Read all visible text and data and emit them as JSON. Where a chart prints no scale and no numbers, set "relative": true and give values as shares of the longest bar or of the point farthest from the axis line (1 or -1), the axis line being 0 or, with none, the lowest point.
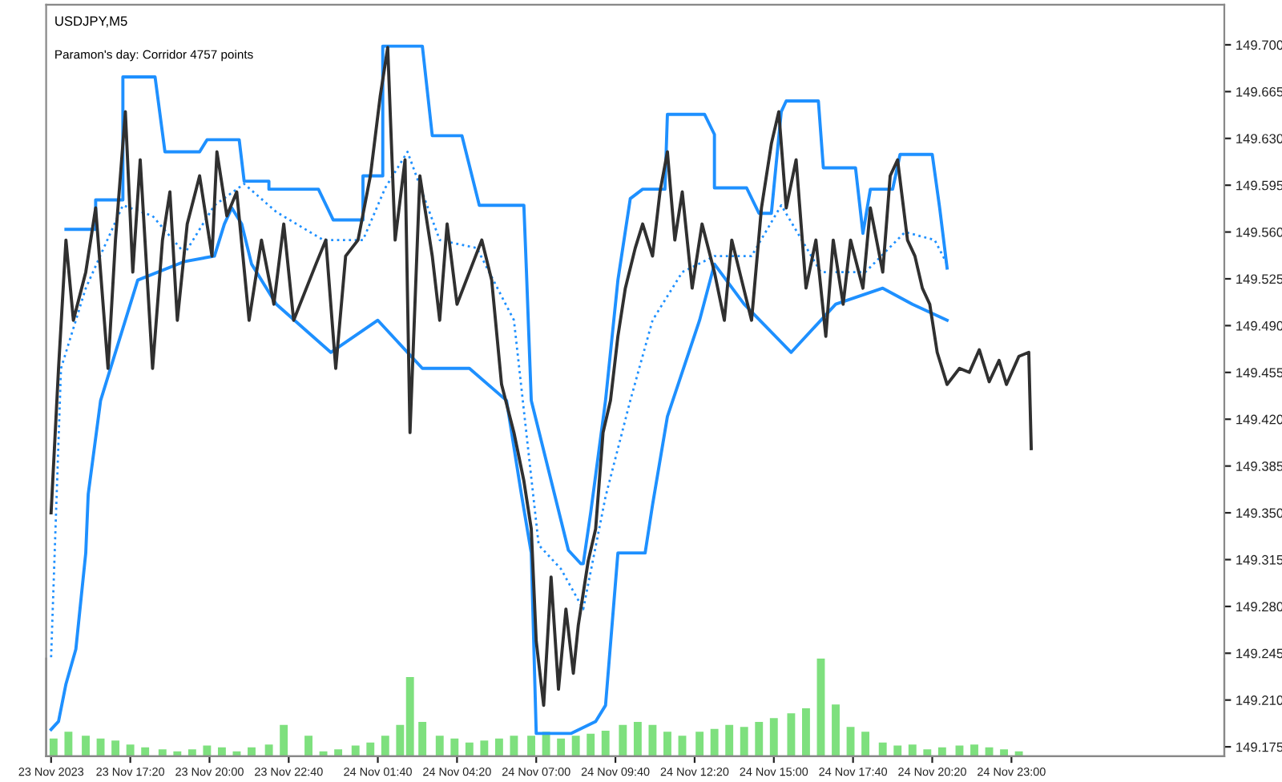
{
  "chart_data": [
    {
      "type": "line",
      "title": "USDJPY,M5",
      "subtitle": "Paramon's day: Corridor 4757 points",
      "grid": false,
      "marker": "none",
      "xlim": [
        "2023-11-23T14:30",
        "2023-11-25T06:10"
      ],
      "ylim": [
        149.168,
        149.73
      ],
      "xticks": [
        {
          "value": "2023-11-23T14:40",
          "label": "23 Nov 2023"
        },
        {
          "value": "2023-11-23T17:20",
          "label": "23 Nov 17:20"
        },
        {
          "value": "2023-11-23T20:00",
          "label": "23 Nov 20:00"
        },
        {
          "value": "2023-11-23T22:40",
          "label": "23 Nov 22:40"
        },
        {
          "value": "2023-11-24T01:40",
          "label": "24 Nov 01:40"
        },
        {
          "value": "2023-11-24T04:20",
          "label": "24 Nov 04:20"
        },
        {
          "value": "2023-11-24T07:00",
          "label": "24 Nov 07:00"
        },
        {
          "value": "2023-11-24T09:40",
          "label": "24 Nov 09:40"
        },
        {
          "value": "2023-11-24T12:20",
          "label": "24 Nov 12:20"
        },
        {
          "value": "2023-11-24T15:00",
          "label": "24 Nov 15:00"
        },
        {
          "value": "2023-11-24T17:40",
          "label": "24 Nov 17:40"
        },
        {
          "value": "2023-11-24T20:20",
          "label": "24 Nov 20:20"
        },
        {
          "value": "2023-11-24T23:00",
          "label": "24 Nov 23:00"
        }
      ],
      "yticks": [
        {
          "value": 149.175,
          "label": "149.175"
        },
        {
          "value": 149.21,
          "label": "149.210"
        },
        {
          "value": 149.245,
          "label": "149.245"
        },
        {
          "value": 149.28,
          "label": "149.280"
        },
        {
          "value": 149.315,
          "label": "149.315"
        },
        {
          "value": 149.35,
          "label": "149.350"
        },
        {
          "value": 149.385,
          "label": "149.385"
        },
        {
          "value": 149.42,
          "label": "149.420"
        },
        {
          "value": 149.455,
          "label": "149.455"
        },
        {
          "value": 149.49,
          "label": "149.490"
        },
        {
          "value": 149.525,
          "label": "149.525"
        },
        {
          "value": 149.56,
          "label": "149.560"
        },
        {
          "value": 149.595,
          "label": "149.595"
        },
        {
          "value": 149.63,
          "label": "149.630"
        },
        {
          "value": 149.665,
          "label": "149.665"
        },
        {
          "value": 149.7,
          "label": "149.700"
        }
      ],
      "series": [
        {
          "type": "line",
          "color": "#1e90ff",
          "line_style": "solid",
          "x": [
            "2023-11-23T15:10",
            "2023-11-23T16:10",
            "2023-11-23T16:10",
            "2023-11-23T17:05",
            "2023-11-23T17:05",
            "2023-11-23T18:10",
            "2023-11-23T18:30",
            "2023-11-23T19:40",
            "2023-11-23T19:55",
            "2023-11-23T21:00",
            "2023-11-23T21:10",
            "2023-11-23T22:00",
            "2023-11-23T22:00",
            "2023-11-23T23:40",
            "2023-11-24T00:10",
            "2023-11-24T01:10",
            "2023-11-24T01:10",
            "2023-11-24T01:50",
            "2023-11-24T01:50",
            "2023-11-24T03:10",
            "2023-11-24T03:30",
            "2023-11-24T04:30",
            "2023-11-24T05:05",
            "2023-11-24T06:35",
            "2023-11-24T06:40",
            "2023-11-24T06:50",
            "2023-11-24T08:05",
            "2023-11-24T08:30",
            "2023-11-24T08:35",
            "2023-11-24T08:50",
            "2023-11-24T09:20",
            "2023-11-24T09:45",
            "2023-11-24T10:10",
            "2023-11-24T10:35",
            "2023-11-24T11:20",
            "2023-11-24T11:25",
            "2023-11-24T12:40",
            "2023-11-24T13:00",
            "2023-11-24T13:00",
            "2023-11-24T14:05",
            "2023-11-24T14:30",
            "2023-11-24T14:55",
            "2023-11-24T15:15",
            "2023-11-24T15:25",
            "2023-11-24T16:30",
            "2023-11-24T16:40",
            "2023-11-24T17:45",
            "2023-11-24T18:00",
            "2023-11-24T18:15",
            "2023-11-24T19:00",
            "2023-11-24T19:15",
            "2023-11-24T20:20",
            "2023-11-24T20:35",
            "2023-11-24T20:50"
          ],
          "values": [
            149.562,
            149.562,
            149.584,
            149.584,
            149.676,
            149.676,
            149.62,
            149.62,
            149.629,
            149.629,
            149.598,
            149.598,
            149.592,
            149.592,
            149.569,
            149.569,
            149.602,
            149.602,
            149.699,
            149.699,
            149.632,
            149.632,
            149.58,
            149.58,
            149.533,
            149.434,
            149.322,
            149.312,
            149.312,
            149.35,
            149.434,
            149.524,
            149.585,
            149.592,
            149.592,
            149.648,
            149.648,
            149.633,
            149.593,
            149.593,
            149.574,
            149.574,
            149.65,
            149.658,
            149.658,
            149.608,
            149.608,
            149.559,
            149.592,
            149.592,
            149.618,
            149.618,
            149.578,
            149.533
          ]
        },
        {
          "type": "line",
          "color": "#1e90ff",
          "line_style": "solid",
          "x": [
            "2023-11-23T14:40",
            "2023-11-23T14:55",
            "2023-11-23T15:10",
            "2023-11-23T15:30",
            "2023-11-23T15:50",
            "2023-11-23T15:55",
            "2023-11-23T16:20",
            "2023-11-23T17:35",
            "2023-11-23T19:10",
            "2023-11-23T20:10",
            "2023-11-23T20:30",
            "2023-11-23T20:45",
            "2023-11-23T21:05",
            "2023-11-23T21:25",
            "2023-11-23T22:15",
            "2023-11-24T00:05",
            "2023-11-24T01:40",
            "2023-11-24T03:10",
            "2023-11-24T04:45",
            "2023-11-24T06:00",
            "2023-11-24T06:30",
            "2023-11-24T06:50",
            "2023-11-24T07:00",
            "2023-11-24T08:10",
            "2023-11-24T09:00",
            "2023-11-24T09:20",
            "2023-11-24T09:45",
            "2023-11-24T10:40",
            "2023-11-24T10:55",
            "2023-11-24T11:25",
            "2023-11-24T12:30",
            "2023-11-24T13:00",
            "2023-11-24T14:00",
            "2023-11-24T15:35",
            "2023-11-24T17:05",
            "2023-11-24T18:40",
            "2023-11-24T19:40",
            "2023-11-24T20:50"
          ],
          "values": [
            149.188,
            149.194,
            149.222,
            149.248,
            149.32,
            149.364,
            149.434,
            149.524,
            149.538,
            149.542,
            149.566,
            149.578,
            149.566,
            149.536,
            149.506,
            149.47,
            149.494,
            149.458,
            149.458,
            149.434,
            149.364,
            149.32,
            149.185,
            149.185,
            149.194,
            149.206,
            149.32,
            149.32,
            149.356,
            149.422,
            149.494,
            149.536,
            149.506,
            149.47,
            149.506,
            149.518,
            149.506,
            149.494
          ]
        },
        {
          "type": "line",
          "color": "#1e90ff",
          "line_style": "dotted",
          "x": [
            "2023-11-23T14:40",
            "2023-11-23T15:00",
            "2023-11-23T15:50",
            "2023-11-23T17:05",
            "2023-11-23T18:05",
            "2023-11-23T19:10",
            "2023-11-23T20:10",
            "2023-11-23T21:10",
            "2023-11-23T22:15",
            "2023-11-23T23:50",
            "2023-11-24T01:10",
            "2023-11-24T01:55",
            "2023-11-24T02:40",
            "2023-11-24T03:45",
            "2023-11-24T05:00",
            "2023-11-24T06:15",
            "2023-11-24T07:05",
            "2023-11-24T07:50",
            "2023-11-24T08:35",
            "2023-11-24T09:20",
            "2023-11-24T10:10",
            "2023-11-24T10:55",
            "2023-11-24T11:55",
            "2023-11-24T13:00",
            "2023-11-24T14:15",
            "2023-11-24T15:15",
            "2023-11-24T16:35",
            "2023-11-24T18:05",
            "2023-11-24T19:25",
            "2023-11-24T20:25",
            "2023-11-24T20:50"
          ],
          "values": [
            149.242,
            149.458,
            149.518,
            149.58,
            149.572,
            149.544,
            149.58,
            149.596,
            149.575,
            149.554,
            149.554,
            149.593,
            149.62,
            149.554,
            149.548,
            149.494,
            149.326,
            149.308,
            149.278,
            149.362,
            149.434,
            149.494,
            149.53,
            149.542,
            149.542,
            149.58,
            149.53,
            149.53,
            149.56,
            149.554,
            149.536
          ]
        },
        {
          "type": "line",
          "color": "#303030",
          "line_style": "solid",
          "x": [
            "2023-11-23T14:40",
            "2023-11-23T14:55",
            "2023-11-23T15:10",
            "2023-11-23T15:25",
            "2023-11-23T15:50",
            "2023-11-23T16:10",
            "2023-11-23T16:35",
            "2023-11-23T16:50",
            "2023-11-23T17:10",
            "2023-11-23T17:25",
            "2023-11-23T17:40",
            "2023-11-23T18:05",
            "2023-11-23T18:25",
            "2023-11-23T18:40",
            "2023-11-23T18:55",
            "2023-11-23T19:15",
            "2023-11-23T19:40",
            "2023-11-23T20:05",
            "2023-11-23T20:15",
            "2023-11-23T20:35",
            "2023-11-23T20:55",
            "2023-11-23T21:20",
            "2023-11-23T21:45",
            "2023-11-23T22:10",
            "2023-11-23T22:30",
            "2023-11-23T22:50",
            "2023-11-23T23:35",
            "2023-11-23T23:55",
            "2023-11-24T00:15",
            "2023-11-24T00:35",
            "2023-11-24T01:00",
            "2023-11-24T01:25",
            "2023-11-24T01:45",
            "2023-11-24T02:00",
            "2023-11-24T02:15",
            "2023-11-24T02:35",
            "2023-11-24T02:45",
            "2023-11-24T03:05",
            "2023-11-24T03:30",
            "2023-11-24T03:45",
            "2023-11-24T04:00",
            "2023-11-24T04:20",
            "2023-11-24T04:45",
            "2023-11-24T05:10",
            "2023-11-24T05:30",
            "2023-11-24T05:50",
            "2023-11-24T06:15",
            "2023-11-24T06:35",
            "2023-11-24T06:50",
            "2023-11-24T07:00",
            "2023-11-24T07:15",
            "2023-11-24T07:30",
            "2023-11-24T07:45",
            "2023-11-24T08:00",
            "2023-11-24T08:15",
            "2023-11-24T08:25",
            "2023-11-24T08:45",
            "2023-11-24T09:00",
            "2023-11-24T09:15",
            "2023-11-24T09:30",
            "2023-11-24T09:45",
            "2023-11-24T10:00",
            "2023-11-24T10:20",
            "2023-11-24T10:35",
            "2023-11-24T10:55",
            "2023-11-24T11:10",
            "2023-11-24T11:25",
            "2023-11-24T11:40",
            "2023-11-24T11:55",
            "2023-11-24T12:15",
            "2023-11-24T12:35",
            "2023-11-24T13:00",
            "2023-11-24T13:20",
            "2023-11-24T13:35",
            "2023-11-24T13:55",
            "2023-11-24T14:15",
            "2023-11-24T14:35",
            "2023-11-24T14:55",
            "2023-11-24T15:10",
            "2023-11-24T15:25",
            "2023-11-24T15:45",
            "2023-11-24T16:05",
            "2023-11-24T16:25",
            "2023-11-24T16:45",
            "2023-11-24T17:00",
            "2023-11-24T17:20",
            "2023-11-24T17:35",
            "2023-11-24T18:00",
            "2023-11-24T18:15",
            "2023-11-24T18:40",
            "2023-11-24T18:55",
            "2023-11-24T19:10",
            "2023-11-24T19:30",
            "2023-11-24T19:45",
            "2023-11-24T20:00",
            "2023-11-24T20:15",
            "2023-11-24T20:30",
            "2023-11-24T20:50",
            "2023-11-24T21:15",
            "2023-11-24T21:35",
            "2023-11-24T21:55",
            "2023-11-24T22:15",
            "2023-11-24T22:35",
            "2023-11-24T22:50",
            "2023-11-24T23:15",
            "2023-11-24T23:35",
            "2023-11-24T23:40"
          ],
          "values": [
            149.35,
            149.458,
            149.554,
            149.494,
            149.53,
            149.578,
            149.458,
            149.554,
            149.65,
            149.53,
            149.614,
            149.458,
            149.554,
            149.59,
            149.494,
            149.566,
            149.602,
            149.542,
            149.62,
            149.572,
            149.59,
            149.494,
            149.554,
            149.506,
            149.566,
            149.494,
            149.536,
            149.554,
            149.458,
            149.542,
            149.554,
            149.602,
            149.662,
            149.698,
            149.554,
            149.614,
            149.41,
            149.602,
            149.542,
            149.494,
            149.566,
            149.506,
            149.53,
            149.554,
            149.524,
            149.446,
            149.41,
            149.374,
            149.338,
            149.254,
            149.206,
            149.302,
            149.218,
            149.278,
            149.23,
            149.266,
            149.314,
            149.338,
            149.41,
            149.434,
            149.482,
            149.518,
            149.548,
            149.566,
            149.542,
            149.59,
            149.62,
            149.554,
            149.59,
            149.518,
            149.566,
            149.53,
            149.494,
            149.554,
            149.524,
            149.494,
            149.578,
            149.626,
            149.65,
            149.578,
            149.614,
            149.518,
            149.554,
            149.482,
            149.554,
            149.506,
            149.554,
            149.518,
            149.578,
            149.53,
            149.602,
            149.614,
            149.554,
            149.542,
            149.518,
            149.506,
            149.47,
            149.446,
            149.458,
            149.455,
            149.472,
            149.448,
            149.464,
            149.446,
            149.467,
            149.47,
            149.398
          ]
        }
      ]
    },
    {
      "type": "bar",
      "relative": true,
      "color": "#7ee07e",
      "tick_labels": false,
      "xlim": [
        "2023-11-23T14:30",
        "2023-11-25T06:10"
      ],
      "x": [
        "2023-11-23T14:45",
        "2023-11-23T15:15",
        "2023-11-23T15:50",
        "2023-11-23T16:20",
        "2023-11-23T16:50",
        "2023-11-23T17:20",
        "2023-11-23T17:50",
        "2023-11-23T18:25",
        "2023-11-23T18:55",
        "2023-11-23T19:25",
        "2023-11-23T19:55",
        "2023-11-23T20:25",
        "2023-11-23T20:55",
        "2023-11-23T21:25",
        "2023-11-23T22:00",
        "2023-11-23T22:30",
        "2023-11-23T23:20",
        "2023-11-23T23:50",
        "2023-11-24T00:20",
        "2023-11-24T00:55",
        "2023-11-24T01:25",
        "2023-11-24T01:55",
        "2023-11-24T02:25",
        "2023-11-24T02:45",
        "2023-11-24T03:10",
        "2023-11-24T03:45",
        "2023-11-24T04:15",
        "2023-11-24T04:45",
        "2023-11-24T05:15",
        "2023-11-24T05:45",
        "2023-11-24T06:15",
        "2023-11-24T06:50",
        "2023-11-24T07:20",
        "2023-11-24T07:50",
        "2023-11-24T08:20",
        "2023-11-24T08:50",
        "2023-11-24T09:20",
        "2023-11-24T09:55",
        "2023-11-24T10:25",
        "2023-11-24T10:55",
        "2023-11-24T11:25",
        "2023-11-24T11:55",
        "2023-11-24T12:30",
        "2023-11-24T13:00",
        "2023-11-24T13:30",
        "2023-11-24T14:00",
        "2023-11-24T14:30",
        "2023-11-24T15:00",
        "2023-11-24T15:35",
        "2023-11-24T16:05",
        "2023-11-24T16:35",
        "2023-11-24T17:05",
        "2023-11-24T17:35",
        "2023-11-24T18:05",
        "2023-11-24T18:40",
        "2023-11-24T19:10",
        "2023-11-24T19:40",
        "2023-11-24T20:10",
        "2023-11-24T20:40",
        "2023-11-24T21:15",
        "2023-11-24T21:45",
        "2023-11-24T22:15",
        "2023-11-24T22:45",
        "2023-11-24T23:15"
      ],
      "values": [
        0.18,
        0.25,
        0.21,
        0.18,
        0.16,
        0.12,
        0.09,
        0.07,
        0.05,
        0.07,
        0.11,
        0.09,
        0.05,
        0.09,
        0.12,
        0.32,
        0.21,
        0.05,
        0.07,
        0.11,
        0.14,
        0.21,
        0.32,
        0.81,
        0.35,
        0.21,
        0.18,
        0.14,
        0.16,
        0.18,
        0.21,
        0.21,
        0.25,
        0.18,
        0.21,
        0.23,
        0.26,
        0.32,
        0.35,
        0.32,
        0.25,
        0.21,
        0.25,
        0.28,
        0.32,
        0.3,
        0.35,
        0.39,
        0.44,
        0.49,
        1,
        0.53,
        0.3,
        0.25,
        0.14,
        0.11,
        0.12,
        0.07,
        0.09,
        0.11,
        0.12,
        0.09,
        0.07,
        0.05
      ]
    }
  ]
}
